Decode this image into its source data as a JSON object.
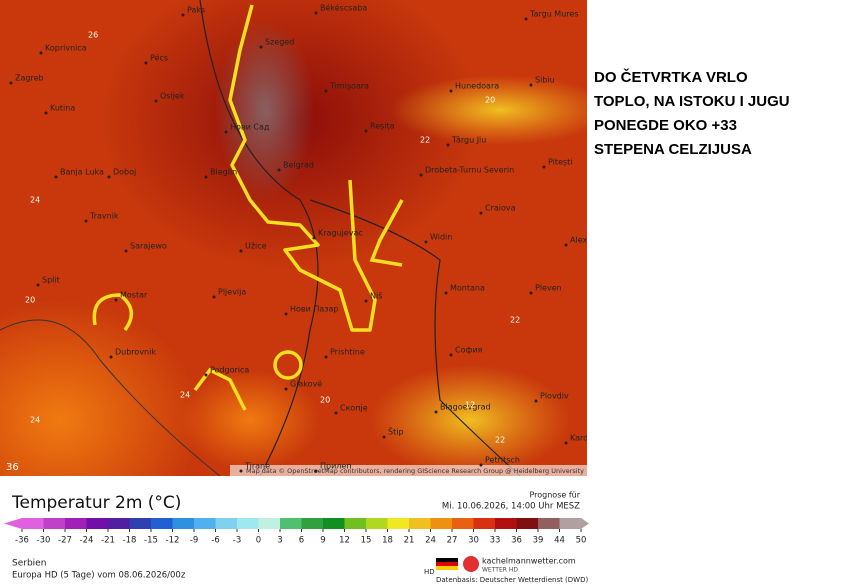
{
  "map": {
    "cities": [
      "Paks",
      "Békéscsaba",
      "Targu Mures",
      "Koprivnica",
      "Szeged",
      "Pécs",
      "Sibiu",
      "Zagreb",
      "Timișoara",
      "Hunedoara",
      "Osijek",
      "Kutina",
      "Нови Сад",
      "Reșița",
      "Târgu Jiu",
      "Pitești",
      "Belgrad",
      "Drobeta-Turnu Severin",
      "Banja Luka",
      "Doboj",
      "Bieglin",
      "Craiova",
      "Travnik",
      "Kragujevac",
      "Widin",
      "Alexand",
      "Sarajewo",
      "Užice",
      "Split",
      "Pljevlja",
      "Montana",
      "Pleven",
      "Mostar",
      "Нови Пазар",
      "Niš",
      "Dubrovnik",
      "Prishtine",
      "София",
      "Podgorica",
      "Gjakovë",
      "Plovdiv",
      "Blagoevgrad",
      "Скопје",
      "Štip",
      "Kardsc",
      "Tirane",
      "Petritsch",
      "Прилеп"
    ],
    "contour_labels": [
      "26",
      "24",
      "20",
      "22",
      "24",
      "20",
      "22",
      "12",
      "22",
      "20",
      "24"
    ],
    "corner_label": "36",
    "attribution": "Map data © OpenStreetMap contributors, rendering GIScience Research Group @ Heidelberg University"
  },
  "annotation": {
    "lines": [
      "DO ČETVRTKA VRLO",
      "TOPLO,  NA ISTOKU I JUGU",
      "PONEGDE OKO +33",
      "STEPENA CELZIJUSA"
    ]
  },
  "legend": {
    "title": "Temperatur 2m (°C)",
    "ticks": [
      -36,
      -30,
      -27,
      -24,
      -21,
      -18,
      -15,
      -12,
      -9,
      -6,
      -3,
      0,
      3,
      6,
      9,
      12,
      15,
      18,
      21,
      24,
      27,
      30,
      33,
      36,
      39,
      44,
      50
    ],
    "colors": [
      "#e060e0",
      "#c040c8",
      "#a020b8",
      "#7010a8",
      "#5020a0",
      "#3040b0",
      "#2060d0",
      "#3090e0",
      "#50b0f0",
      "#80d0f0",
      "#a0e8f0",
      "#c0f0e0",
      "#50c070",
      "#30a040",
      "#109020",
      "#70c020",
      "#b0d820",
      "#f0e820",
      "#f0c020",
      "#f09010",
      "#e86010",
      "#d83010",
      "#b01010",
      "#801010",
      "#906060",
      "#b0a0a0"
    ]
  },
  "footer": {
    "forecast_label": "Prognose für",
    "forecast_time": "Mi. 10.06.2026, 14:00 Uhr MESZ",
    "region": "Serbien",
    "model": "Europa HD (5 Tage) vom 08.06.2026/00z",
    "hd": "HD",
    "site": "kachelmannwetter.com",
    "site_sub": "WETTER HD",
    "source": "Datenbasis: Deutscher Wetterdienst (DWD)"
  }
}
